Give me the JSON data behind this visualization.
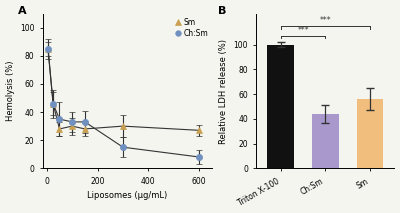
{
  "panel_A": {
    "Sm_x": [
      5,
      25,
      50,
      100,
      150,
      300,
      600
    ],
    "Sm_y": [
      85,
      46,
      28,
      30,
      28,
      30,
      27
    ],
    "Sm_err": [
      5,
      8,
      5,
      6,
      5,
      8,
      4
    ],
    "ChSm_x": [
      5,
      25,
      50,
      100,
      150,
      300,
      600
    ],
    "ChSm_y": [
      85,
      46,
      35,
      33,
      33,
      15,
      8
    ],
    "ChSm_err": [
      7,
      10,
      12,
      7,
      8,
      7,
      5
    ],
    "xlabel": "Liposomes (μg/mL)",
    "ylabel": "Hemolysis (%)",
    "xlim": [
      -15,
      650
    ],
    "ylim": [
      0,
      110
    ],
    "yticks": [
      0,
      20,
      40,
      60,
      80,
      100
    ],
    "xticks": [
      0,
      200,
      400,
      600
    ]
  },
  "panel_B": {
    "categories": [
      "Triton X-100",
      "Ch:Sm",
      "Sm"
    ],
    "values": [
      100,
      44,
      56
    ],
    "errors": [
      2,
      7,
      9
    ],
    "colors": [
      "#111111",
      "#a898cc",
      "#f2be7e"
    ],
    "ylabel": "Relative LDH release (%)",
    "ylim": [
      0,
      125
    ],
    "yticks": [
      0,
      20,
      40,
      60,
      80,
      100
    ],
    "sig_lines": [
      {
        "x1": 0,
        "x2": 1,
        "y": 107,
        "text": "***"
      },
      {
        "x1": 0,
        "x2": 2,
        "y": 115,
        "text": "***"
      }
    ]
  },
  "Sm_color": "#c8a050",
  "ChSm_color": "#7090c0",
  "line_color": "#333333",
  "background": "#f5f5f0"
}
